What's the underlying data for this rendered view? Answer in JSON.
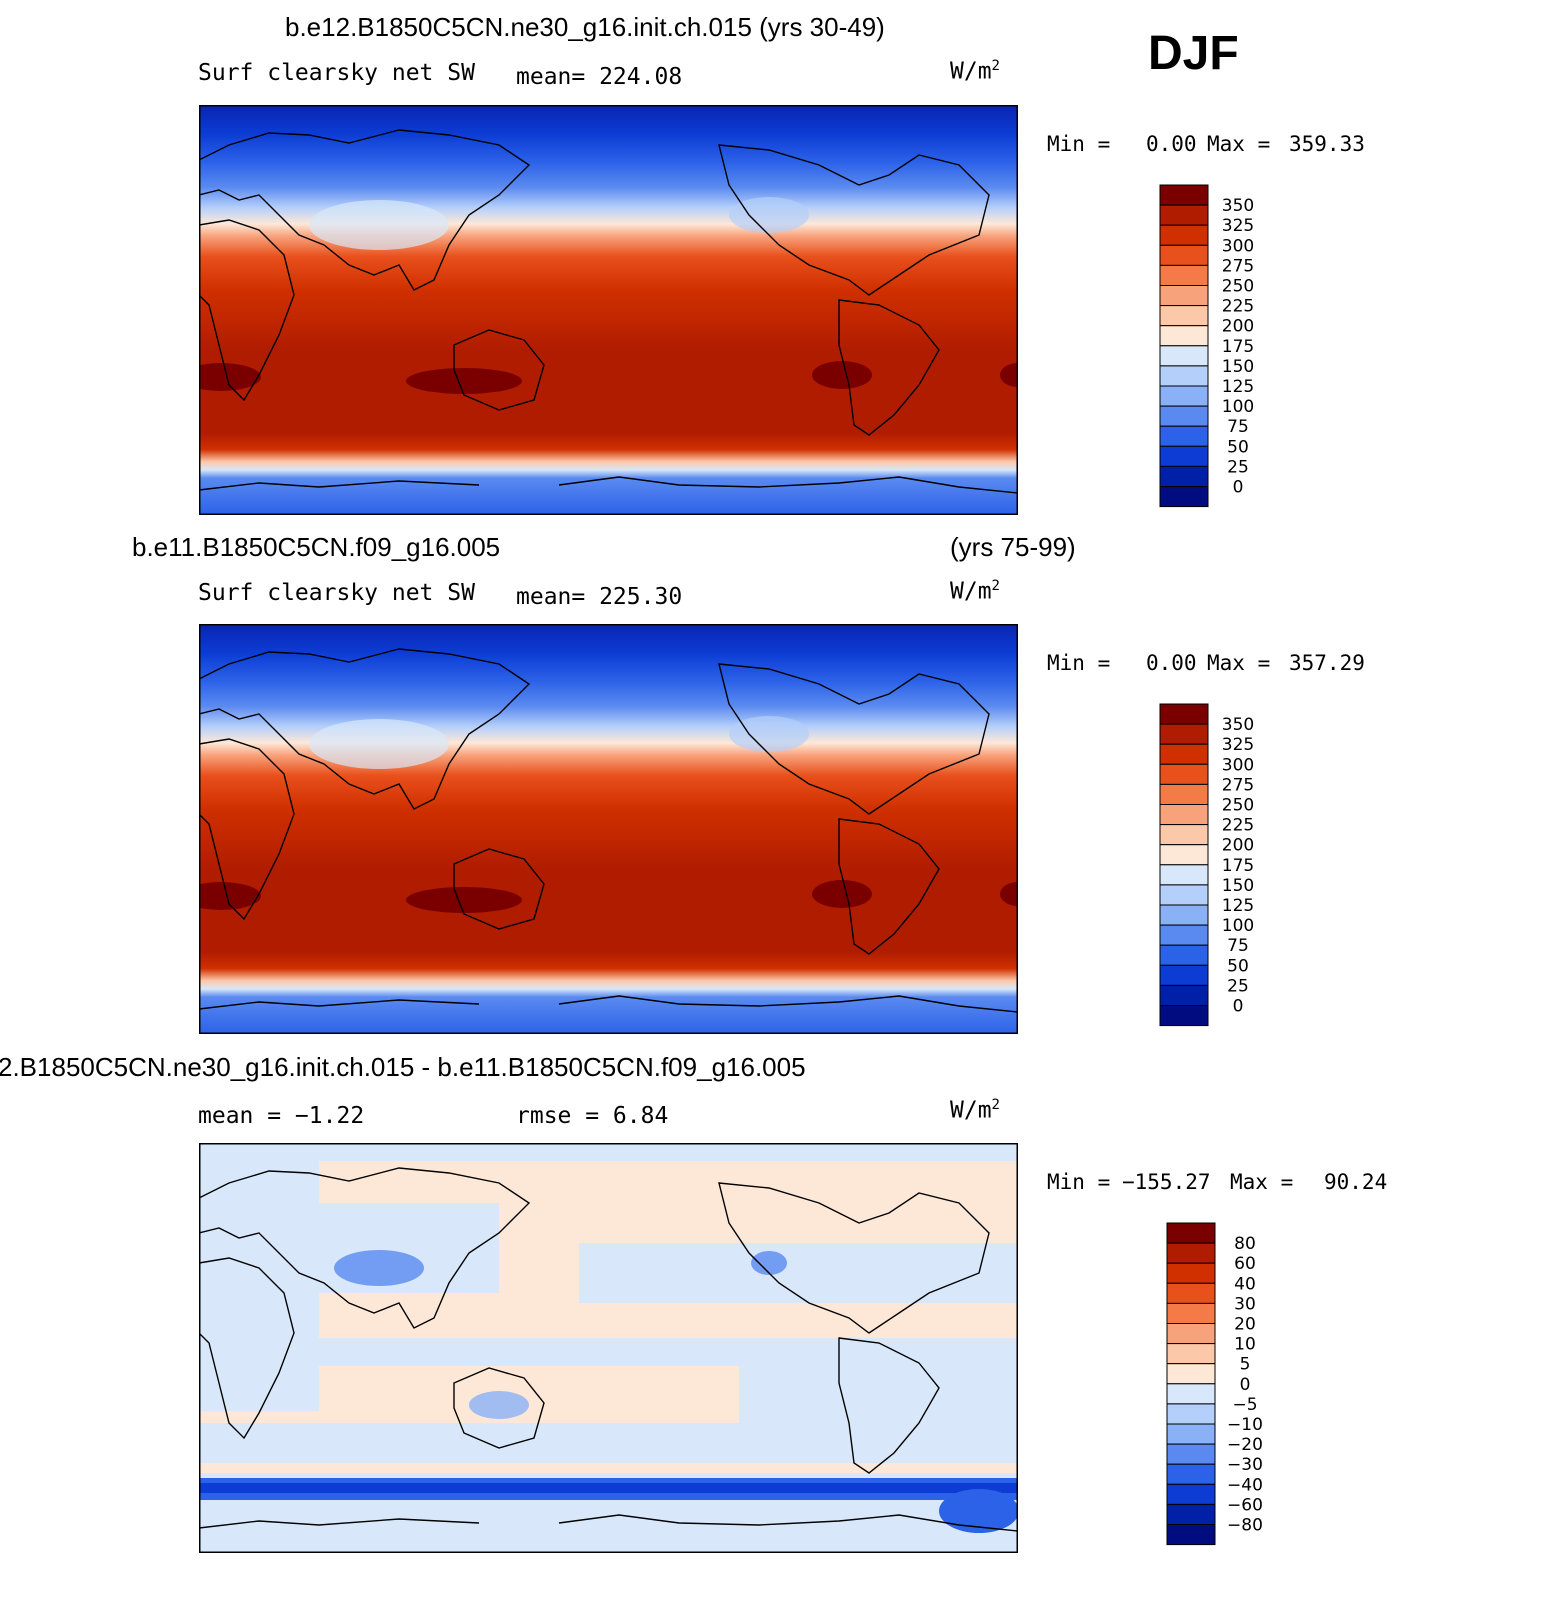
{
  "season": "DJF",
  "units_label": "W/m",
  "units_sup": "2",
  "panels": [
    {
      "title_left": "b.e12.B1850C5CN.ne30_g16.init.ch.015 (yrs 30-49)",
      "title_right": "",
      "variable": "Surf clearsky net SW",
      "mean_text": "mean= 224.08",
      "rmse_text": "",
      "min_label": "Min =",
      "min_value": "0.00",
      "max_label": "Max =",
      "max_value": "359.33"
    },
    {
      "title_left": "b.e11.B1850C5CN.f09_g16.005",
      "title_right": "(yrs 75-99)",
      "variable": "Surf clearsky net SW",
      "mean_text": "mean= 225.30",
      "rmse_text": "",
      "min_label": "Min =",
      "min_value": "0.00",
      "max_label": "Max =",
      "max_value": "357.29"
    },
    {
      "title_left": "2.B1850C5CN.ne30_g16.init.ch.015 - b.e11.B1850C5CN.f09_g16.005",
      "title_right": "",
      "variable": "",
      "mean_text": "mean =   −1.22",
      "rmse_text": "rmse =    6.84",
      "min_label": "Min =",
      "min_value": "−155.27",
      "max_label": "Max =",
      "max_value": "90.24"
    }
  ],
  "colorbars": {
    "absolute": {
      "labels": [
        "350",
        "325",
        "300",
        "275",
        "250",
        "225",
        "200",
        "175",
        "150",
        "125",
        "100",
        "75",
        "50",
        "25",
        "0"
      ],
      "colors": [
        "#7a0000",
        "#b01c00",
        "#d03000",
        "#e8501c",
        "#f47a48",
        "#f8a27c",
        "#fcc8aa",
        "#fde8d8",
        "#d8e8fa",
        "#b4cffa",
        "#8ab0f6",
        "#5a8af0",
        "#2c62e8",
        "#0c3cd4",
        "#0020a8",
        "#000c80"
      ]
    },
    "difference": {
      "labels": [
        "80",
        "60",
        "40",
        "30",
        "20",
        "10",
        "5",
        "0",
        "−5",
        "−10",
        "−20",
        "−30",
        "−40",
        "−60",
        "−80"
      ],
      "colors": [
        "#7a0000",
        "#b01c00",
        "#d03000",
        "#e8501c",
        "#f47a48",
        "#f8a27c",
        "#fcc8aa",
        "#fde8d8",
        "#d8e8fa",
        "#b4cffa",
        "#8ab0f6",
        "#5a8af0",
        "#2c62e8",
        "#0c3cd4",
        "#0020a8",
        "#000c80"
      ]
    }
  }
}
